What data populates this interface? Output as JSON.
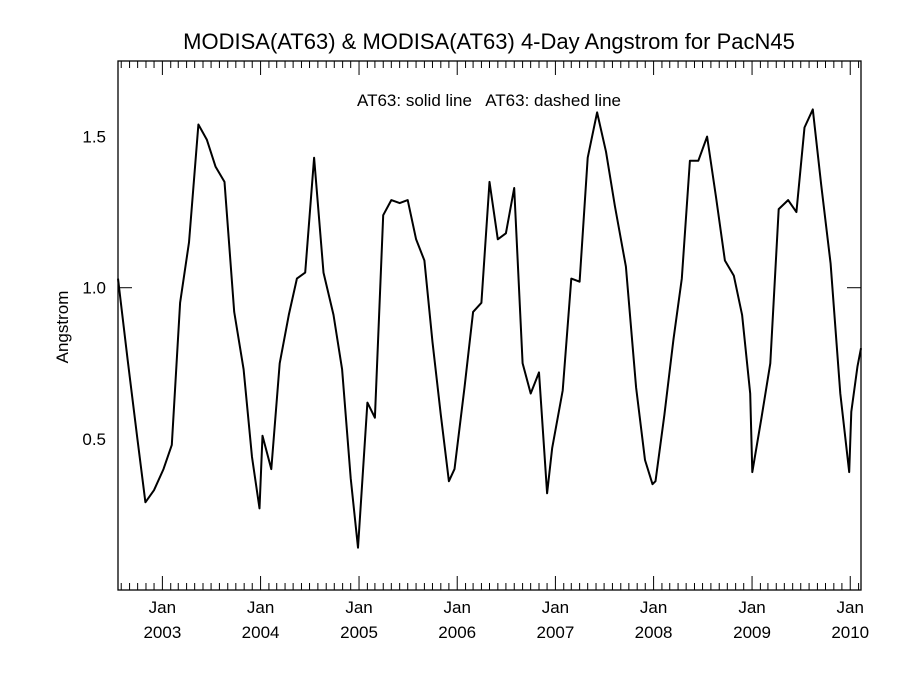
{
  "chart_data": {
    "type": "line",
    "title": "MODISA(AT63) & MODISA(AT63) 4-Day Angstrom for PacN45",
    "ylabel": "Angstrom",
    "annotation": "AT63: solid line   AT63: dashed line",
    "xlim": [
      "2002-07-20",
      "2010-02-10"
    ],
    "ylim": [
      0.0,
      1.75
    ],
    "y_ticks": [
      {
        "value": 0.5,
        "label": "0.5"
      },
      {
        "value": 1.0,
        "label": "1.0"
      },
      {
        "value": 1.5,
        "label": "1.5"
      }
    ],
    "x_ticks": [
      {
        "date": "2003-01-01",
        "month": "Jan",
        "year": "2003"
      },
      {
        "date": "2004-01-01",
        "month": "Jan",
        "year": "2004"
      },
      {
        "date": "2005-01-01",
        "month": "Jan",
        "year": "2005"
      },
      {
        "date": "2006-01-01",
        "month": "Jan",
        "year": "2006"
      },
      {
        "date": "2007-01-01",
        "month": "Jan",
        "year": "2007"
      },
      {
        "date": "2008-01-01",
        "month": "Jan",
        "year": "2008"
      },
      {
        "date": "2009-01-01",
        "month": "Jan",
        "year": "2009"
      },
      {
        "date": "2010-01-01",
        "month": "Jan",
        "year": "2010"
      }
    ],
    "series": [
      {
        "style": "solid",
        "points": [
          [
            "2002-07-20",
            1.03
          ],
          [
            "2002-08-25",
            0.76
          ],
          [
            "2002-09-30",
            0.5
          ],
          [
            "2002-10-30",
            0.29
          ],
          [
            "2002-12-01",
            0.33
          ],
          [
            "2003-01-05",
            0.4
          ],
          [
            "2003-02-05",
            0.48
          ],
          [
            "2003-03-08",
            0.95
          ],
          [
            "2003-04-10",
            1.15
          ],
          [
            "2003-05-15",
            1.54
          ],
          [
            "2003-06-15",
            1.49
          ],
          [
            "2003-07-18",
            1.4
          ],
          [
            "2003-08-20",
            1.35
          ],
          [
            "2003-09-25",
            0.92
          ],
          [
            "2003-10-30",
            0.73
          ],
          [
            "2003-11-30",
            0.44
          ],
          [
            "2003-12-28",
            0.27
          ],
          [
            "2004-01-08",
            0.51
          ],
          [
            "2004-02-10",
            0.4
          ],
          [
            "2004-03-12",
            0.75
          ],
          [
            "2004-04-15",
            0.91
          ],
          [
            "2004-05-15",
            1.03
          ],
          [
            "2004-06-15",
            1.05
          ],
          [
            "2004-07-18",
            1.43
          ],
          [
            "2004-08-22",
            1.05
          ],
          [
            "2004-09-28",
            0.91
          ],
          [
            "2004-10-30",
            0.73
          ],
          [
            "2004-12-01",
            0.37
          ],
          [
            "2004-12-28",
            0.14
          ],
          [
            "2005-02-01",
            0.62
          ],
          [
            "2005-03-01",
            0.57
          ],
          [
            "2005-04-01",
            1.24
          ],
          [
            "2005-05-01",
            1.29
          ],
          [
            "2005-06-01",
            1.28
          ],
          [
            "2005-07-01",
            1.29
          ],
          [
            "2005-08-01",
            1.16
          ],
          [
            "2005-09-01",
            1.09
          ],
          [
            "2005-10-01",
            0.82
          ],
          [
            "2005-11-01",
            0.58
          ],
          [
            "2005-12-01",
            0.36
          ],
          [
            "2005-12-22",
            0.4
          ],
          [
            "2006-01-28",
            0.67
          ],
          [
            "2006-03-01",
            0.92
          ],
          [
            "2006-04-01",
            0.95
          ],
          [
            "2006-05-01",
            1.35
          ],
          [
            "2006-06-01",
            1.16
          ],
          [
            "2006-07-01",
            1.18
          ],
          [
            "2006-08-01",
            1.33
          ],
          [
            "2006-09-01",
            0.75
          ],
          [
            "2006-10-01",
            0.65
          ],
          [
            "2006-11-01",
            0.72
          ],
          [
            "2006-12-01",
            0.32
          ],
          [
            "2006-12-20",
            0.47
          ],
          [
            "2007-01-28",
            0.66
          ],
          [
            "2007-03-01",
            1.03
          ],
          [
            "2007-04-01",
            1.02
          ],
          [
            "2007-05-01",
            1.43
          ],
          [
            "2007-06-05",
            1.58
          ],
          [
            "2007-07-08",
            1.45
          ],
          [
            "2007-08-10",
            1.27
          ],
          [
            "2007-09-20",
            1.07
          ],
          [
            "2007-10-28",
            0.67
          ],
          [
            "2007-11-30",
            0.43
          ],
          [
            "2007-12-28",
            0.35
          ],
          [
            "2008-01-08",
            0.36
          ],
          [
            "2008-02-10",
            0.58
          ],
          [
            "2008-03-15",
            0.83
          ],
          [
            "2008-04-15",
            1.03
          ],
          [
            "2008-05-15",
            1.42
          ],
          [
            "2008-06-15",
            1.42
          ],
          [
            "2008-07-18",
            1.5
          ],
          [
            "2008-08-20",
            1.3
          ],
          [
            "2008-09-22",
            1.09
          ],
          [
            "2008-10-25",
            1.04
          ],
          [
            "2008-11-25",
            0.91
          ],
          [
            "2008-12-25",
            0.65
          ],
          [
            "2009-01-02",
            0.39
          ],
          [
            "2009-02-05",
            0.57
          ],
          [
            "2009-03-10",
            0.75
          ],
          [
            "2009-04-10",
            1.26
          ],
          [
            "2009-05-15",
            1.29
          ],
          [
            "2009-06-15",
            1.25
          ],
          [
            "2009-07-15",
            1.53
          ],
          [
            "2009-08-15",
            1.59
          ],
          [
            "2009-09-15",
            1.34
          ],
          [
            "2009-10-20",
            1.08
          ],
          [
            "2009-11-25",
            0.65
          ],
          [
            "2009-12-28",
            0.39
          ],
          [
            "2010-01-05",
            0.59
          ],
          [
            "2010-01-28",
            0.74
          ],
          [
            "2010-02-10",
            0.8
          ]
        ]
      }
    ]
  }
}
